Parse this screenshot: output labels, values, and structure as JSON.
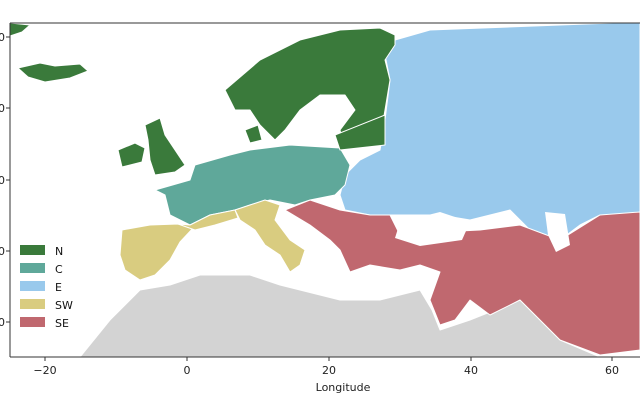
{
  "map": {
    "xlabel": "Longitude",
    "x_ticks": [
      "−20",
      "0",
      "20",
      "40",
      "60"
    ],
    "y_ticks_visible": [
      "0",
      "0",
      "0",
      "0",
      "0"
    ],
    "legend": [
      {
        "label": "N",
        "color": "#3a7a3b"
      },
      {
        "label": "C",
        "color": "#5fa89a"
      },
      {
        "label": "E",
        "color": "#99c9ec"
      },
      {
        "label": "SW",
        "color": "#d9cc80"
      },
      {
        "label": "SE",
        "color": "#c0686f"
      }
    ],
    "other_color": "#d3d3d3",
    "border_color": "#ffffff"
  }
}
